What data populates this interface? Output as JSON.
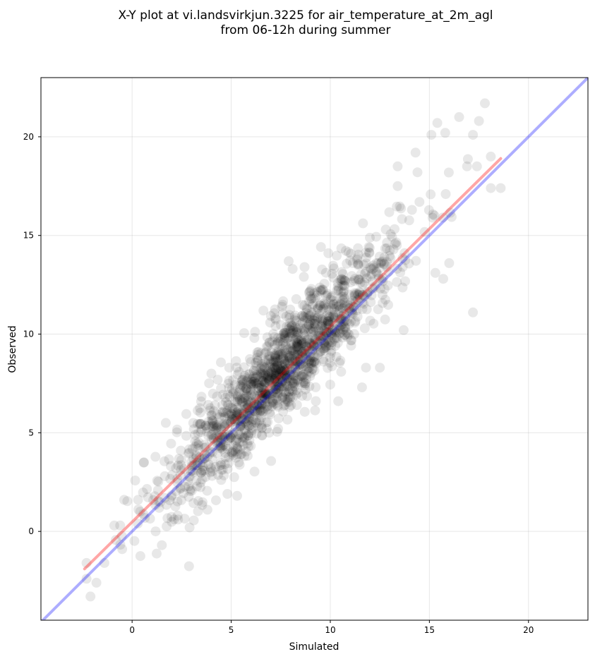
{
  "chart_data": {
    "type": "scatter",
    "title_lines": [
      "X-Y plot at vi.landsvirkjun.3225 for air_temperature_at_2m_agl",
      "from 06-12h during summer"
    ],
    "xlabel": "Simulated",
    "ylabel": "Observed",
    "xlim": [
      -4.6,
      23.0
    ],
    "ylim": [
      -4.5,
      23.0
    ],
    "xticks": [
      0,
      5,
      10,
      15,
      20
    ],
    "yticks": [
      0,
      5,
      10,
      15,
      20
    ],
    "grid": true,
    "point_color": "#000000",
    "point_alpha": 0.09,
    "point_count": 1500,
    "reference_line": {
      "name": "1:1",
      "color": "#0000ff",
      "slope": 1,
      "intercept": 0
    },
    "fit_line": {
      "color": "#ff0000",
      "x": [
        -2.4,
        18.6
      ],
      "y": [
        -1.9,
        18.9
      ]
    },
    "notable_points": [
      [
        17.8,
        21.7
      ],
      [
        16.5,
        21.0
      ],
      [
        15.4,
        20.7
      ],
      [
        17.5,
        20.8
      ],
      [
        15.1,
        20.1
      ],
      [
        15.8,
        20.2
      ],
      [
        17.2,
        20.1
      ],
      [
        18.1,
        19.0
      ],
      [
        14.3,
        19.2
      ],
      [
        13.4,
        18.5
      ],
      [
        14.4,
        18.2
      ],
      [
        16.9,
        18.5
      ],
      [
        17.4,
        18.5
      ],
      [
        18.1,
        17.4
      ],
      [
        18.6,
        17.4
      ],
      [
        17.2,
        11.1
      ],
      [
        13.7,
        10.2
      ],
      [
        15.7,
        12.8
      ],
      [
        15.3,
        13.1
      ],
      [
        16.0,
        13.6
      ],
      [
        -2.1,
        -3.3
      ],
      [
        -1.8,
        -2.6
      ],
      [
        -2.3,
        -2.4
      ],
      [
        -2.3,
        -1.6
      ],
      [
        -1.4,
        -1.6
      ],
      [
        -0.9,
        0.3
      ],
      [
        -0.5,
        -0.9
      ],
      [
        -0.4,
        1.6
      ],
      [
        1.5,
        -0.7
      ],
      [
        2.9,
        0.2
      ],
      [
        3.8,
        1.1
      ],
      [
        4.0,
        8.0
      ],
      [
        4.9,
        8.3
      ],
      [
        5.3,
        1.8
      ],
      [
        11.6,
        7.3
      ],
      [
        12.5,
        8.3
      ],
      [
        11.8,
        8.3
      ],
      [
        10.4,
        6.6
      ],
      [
        8.7,
        13.4
      ],
      [
        9.9,
        14.1
      ],
      [
        8.1,
        13.3
      ],
      [
        7.9,
        13.7
      ],
      [
        12.8,
        15.3
      ],
      [
        13.4,
        17.5
      ],
      [
        14.5,
        16.7
      ],
      [
        2.3,
        0.8
      ],
      [
        1.7,
        5.5
      ],
      [
        0.6,
        3.5
      ],
      [
        0.3,
        1.6
      ],
      [
        -0.6,
        0.3
      ]
    ]
  }
}
